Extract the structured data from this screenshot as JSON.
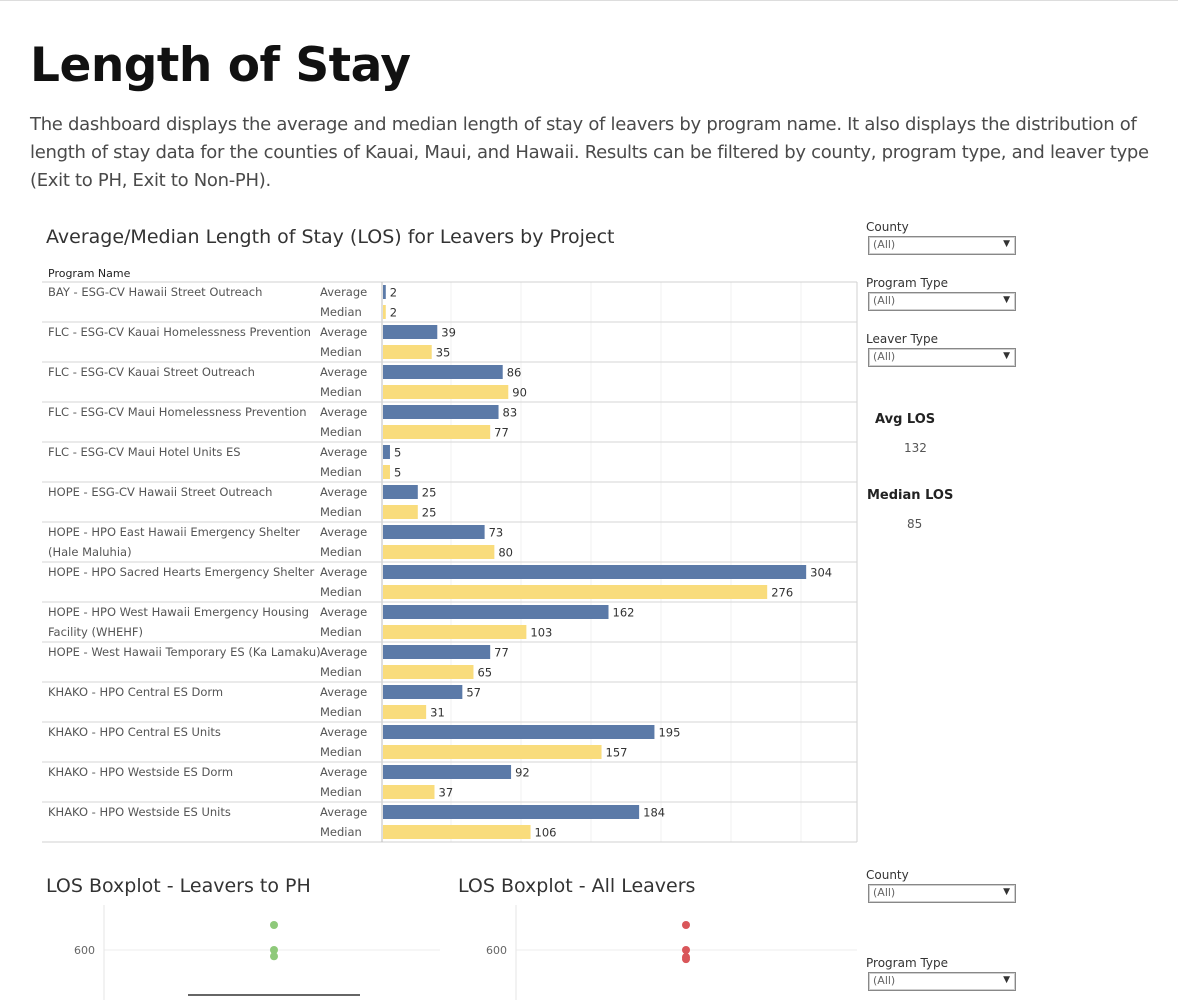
{
  "page": {
    "title": "Length of Stay",
    "description": "The dashboard displays the average and median length of stay of leavers by program name. It also displays the distribution of length of stay data for the counties of Kauai, Maui, and Hawaii. Results can be filtered by county, program type, and leaver type (Exit to PH, Exit to Non-PH)."
  },
  "filters_top": [
    {
      "label": "County",
      "value": "(All)"
    },
    {
      "label": "Program Type",
      "value": "(All)"
    },
    {
      "label": "Leaver Type",
      "value": "(All)"
    }
  ],
  "filters_bottom": [
    {
      "label": "County",
      "value": "(All)"
    },
    {
      "label": "Program Type",
      "value": "(All)"
    }
  ],
  "kpis": {
    "avg_label": "Avg LOS",
    "avg_value": "132",
    "median_label": "Median LOS",
    "median_value": "85"
  },
  "colors": {
    "average": "#5b7aa8",
    "median": "#f9dc7c",
    "ph_dot": "#8ec97a",
    "all_dot": "#d9565a"
  },
  "chart_data": [
    {
      "type": "bar",
      "title": "Average/Median Length of Stay (LOS) for Leavers by Project",
      "row_header": "Program Name",
      "measures": [
        "Average",
        "Median"
      ],
      "categories": [
        [
          "BAY - ESG-CV Hawaii Street Outreach"
        ],
        [
          "FLC - ESG-CV Kauai Homelessness Prevention"
        ],
        [
          "FLC - ESG-CV Kauai Street Outreach"
        ],
        [
          "FLC - ESG-CV Maui Homelessness Prevention"
        ],
        [
          "FLC - ESG-CV Maui Hotel Units ES"
        ],
        [
          "HOPE - ESG-CV Hawaii Street Outreach"
        ],
        [
          "HOPE - HPO East Hawaii Emergency Shelter",
          "(Hale Maluhia)"
        ],
        [
          "HOPE - HPO Sacred Hearts Emergency Shelter"
        ],
        [
          "HOPE - HPO West Hawaii Emergency Housing",
          "Facility (WHEHF)"
        ],
        [
          "HOPE - West Hawaii Temporary ES (Ka Lamaku)"
        ],
        [
          "KHAKO - HPO Central ES Dorm"
        ],
        [
          "KHAKO - HPO Central ES Units"
        ],
        [
          "KHAKO - HPO Westside ES Dorm"
        ],
        [
          "KHAKO - HPO Westside ES Units"
        ]
      ],
      "series": [
        {
          "name": "Average",
          "values": [
            2,
            39,
            86,
            83,
            5,
            25,
            73,
            304,
            162,
            77,
            57,
            195,
            92,
            184
          ]
        },
        {
          "name": "Median",
          "values": [
            2,
            35,
            90,
            77,
            5,
            25,
            80,
            276,
            103,
            65,
            31,
            157,
            37,
            106
          ]
        }
      ]
    },
    {
      "type": "scatter",
      "title": "LOS Boxplot - Leavers to PH",
      "yticks": [
        600
      ],
      "points": [
        660,
        600,
        585
      ]
    },
    {
      "type": "scatter",
      "title": "LOS Boxplot - All Leavers",
      "yticks": [
        600
      ],
      "points": [
        660,
        600,
        583,
        578
      ]
    }
  ]
}
